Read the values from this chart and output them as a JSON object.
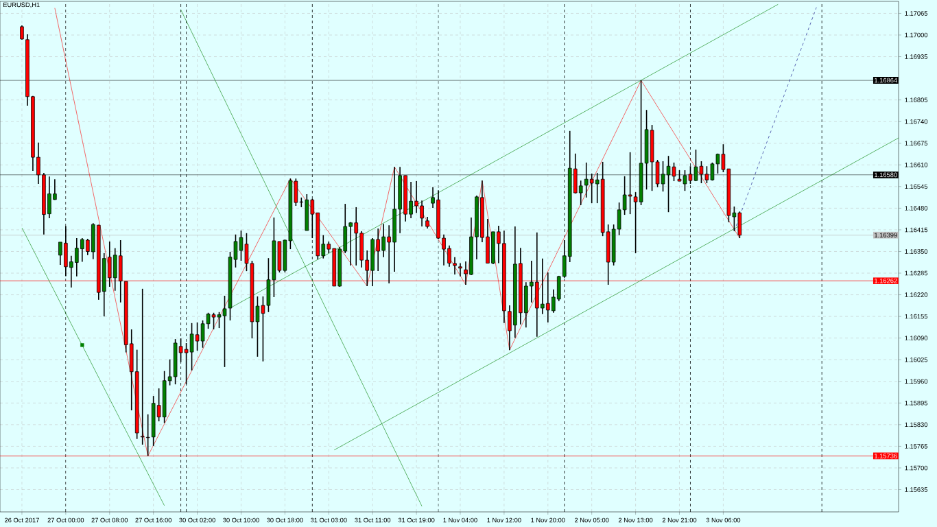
{
  "chart_data": {
    "type": "candlestick",
    "title": "EURUSD,H1",
    "categories": [
      "26 Oct 2017",
      null,
      null,
      null,
      null,
      null,
      null,
      null,
      "27 Oct 00:00",
      null,
      null,
      null,
      null,
      null,
      null,
      null,
      "27 Oct 08:00",
      null,
      null,
      null,
      null,
      null,
      null,
      null,
      "27 Oct 16:00",
      null,
      null,
      null,
      null,
      null,
      null,
      null,
      "30 Oct 02:00",
      null,
      null,
      null,
      null,
      null,
      null,
      null,
      "30 Oct 10:00",
      null,
      null,
      null,
      null,
      null,
      null,
      null,
      "30 Oct 18:00",
      null,
      null,
      null,
      null,
      null,
      null,
      null,
      "31 Oct 03:00",
      null,
      null,
      null,
      null,
      null,
      null,
      null,
      "31 Oct 11:00",
      null,
      null,
      null,
      null,
      null,
      null,
      null,
      "31 Oct 19:00",
      null,
      null,
      null,
      null,
      null,
      null,
      null,
      "1 Nov 04:00",
      null,
      null,
      null,
      null,
      null,
      null,
      null,
      "1 Nov 12:00",
      null,
      null,
      null,
      null,
      null,
      null,
      null,
      "1 Nov 20:00",
      null,
      null,
      null,
      null,
      null,
      null,
      null,
      "2 Nov 05:00",
      null,
      null,
      null,
      null,
      null,
      null,
      null,
      "2 Nov 13:00",
      null,
      null,
      null,
      null,
      null,
      null,
      null,
      "2 Nov 21:00",
      null,
      null,
      null,
      null,
      null,
      null,
      null,
      "3 Nov 06:00",
      null,
      null,
      null,
      null,
      null,
      null,
      null,
      null,
      null,
      null,
      null,
      null,
      null,
      null,
      null,
      null,
      null,
      null,
      null,
      null,
      null,
      null,
      null,
      null,
      null,
      null,
      null,
      null,
      null,
      null,
      null,
      null
    ],
    "ohlc": [
      [
        1.17025,
        1.17029,
        1.16986,
        1.16988
      ],
      [
        1.16986,
        1.17002,
        1.16788,
        1.16815
      ],
      [
        1.16815,
        1.16817,
        1.16592,
        1.16633
      ],
      [
        1.16633,
        1.16677,
        1.16553,
        1.1658
      ],
      [
        1.1658,
        1.16586,
        1.16401,
        1.16461
      ],
      [
        1.16463,
        1.16575,
        1.1645,
        1.16523
      ],
      [
        1.16506,
        1.16567,
        1.16505,
        1.16523
      ],
      [
        1.16339,
        1.16378,
        1.1631,
        1.16378
      ],
      [
        1.16375,
        1.16426,
        1.16276,
        1.16304
      ],
      [
        1.16302,
        1.16337,
        1.16242,
        1.16319
      ],
      [
        1.16317,
        1.1639,
        1.16275,
        1.1636
      ],
      [
        1.16358,
        1.1639,
        1.16319,
        1.16386
      ],
      [
        1.16384,
        1.16388,
        1.16339,
        1.1635
      ],
      [
        1.16349,
        1.16435,
        1.16327,
        1.16431
      ],
      [
        1.16429,
        1.1643,
        1.16205,
        1.16227
      ],
      [
        1.1623,
        1.16345,
        1.16155,
        1.16329
      ],
      [
        1.16333,
        1.1638,
        1.16244,
        1.16271
      ],
      [
        1.16271,
        1.1636,
        1.16232,
        1.16339
      ],
      [
        1.16337,
        1.16384,
        1.16197,
        1.16261
      ],
      [
        1.1626,
        1.1626,
        1.16047,
        1.1607
      ],
      [
        1.16073,
        1.16116,
        1.15873,
        1.15989
      ],
      [
        1.15989,
        1.16055,
        1.15787,
        1.15805
      ],
      [
        1.15795,
        1.16238,
        1.1577,
        1.15793
      ],
      [
        1.15792,
        1.15861,
        1.15736,
        1.15791
      ],
      [
        1.15793,
        1.15916,
        1.15766,
        1.15894
      ],
      [
        1.15888,
        1.15939,
        1.1584,
        1.15853
      ],
      [
        1.15853,
        1.15991,
        1.15835,
        1.15962
      ],
      [
        1.15962,
        1.16026,
        1.15948,
        1.15974
      ],
      [
        1.15974,
        1.16087,
        1.15951,
        1.16075
      ],
      [
        1.16065,
        1.16089,
        1.16018,
        1.16046
      ],
      [
        1.16056,
        1.16075,
        1.15951,
        1.16046
      ],
      [
        1.16048,
        1.16135,
        1.15993,
        1.16102
      ],
      [
        1.161,
        1.16137,
        1.16052,
        1.16081
      ],
      [
        1.16081,
        1.16143,
        1.16061,
        1.16133
      ],
      [
        1.16133,
        1.16166,
        1.16118,
        1.16162
      ],
      [
        1.1616,
        1.16166,
        1.16116,
        1.16153
      ],
      [
        1.16153,
        1.16168,
        1.1612,
        1.1616
      ],
      [
        1.16157,
        1.16217,
        1.16003,
        1.16178
      ],
      [
        1.1618,
        1.16349,
        1.16143,
        1.16333
      ],
      [
        1.16326,
        1.16401,
        1.16302,
        1.1638
      ],
      [
        1.16353,
        1.16413,
        1.16322,
        1.16392
      ],
      [
        1.16372,
        1.16405,
        1.16291,
        1.16314
      ],
      [
        1.16314,
        1.16322,
        1.16089,
        1.16139
      ],
      [
        1.16139,
        1.16215,
        1.16034,
        1.16186
      ],
      [
        1.16188,
        1.16215,
        1.1602,
        1.16164
      ],
      [
        1.16188,
        1.1633,
        1.16168,
        1.16265
      ],
      [
        1.16265,
        1.16452,
        1.16213,
        1.16382
      ],
      [
        1.1638,
        1.1638,
        1.16287,
        1.16293
      ],
      [
        1.16293,
        1.16386,
        1.16287,
        1.16384
      ],
      [
        1.16382,
        1.16569,
        1.16357,
        1.16563
      ],
      [
        1.16561,
        1.16569,
        1.16487,
        1.16497
      ],
      [
        1.16499,
        1.16512,
        1.16483,
        1.16498
      ],
      [
        1.16413,
        1.16522,
        1.16413,
        1.16505
      ],
      [
        1.16505,
        1.16508,
        1.1639,
        1.16462
      ],
      [
        1.16466,
        1.16466,
        1.16326,
        1.16337
      ],
      [
        1.16337,
        1.16399,
        1.16329,
        1.16372
      ],
      [
        1.16372,
        1.1638,
        1.16345,
        1.16357
      ],
      [
        1.16359,
        1.16359,
        1.16246,
        1.16246
      ],
      [
        1.16246,
        1.16363,
        1.16244,
        1.16357
      ],
      [
        1.16351,
        1.16493,
        1.16345,
        1.16425
      ],
      [
        1.16425,
        1.16438,
        1.16308,
        1.16436
      ],
      [
        1.16436,
        1.16483,
        1.16308,
        1.16405
      ],
      [
        1.16405,
        1.16411,
        1.16302,
        1.16324
      ],
      [
        1.16324,
        1.16353,
        1.16246,
        1.16293
      ],
      [
        1.16293,
        1.1639,
        1.16246,
        1.16386
      ],
      [
        1.16386,
        1.16419,
        1.16291,
        1.16351
      ],
      [
        1.16353,
        1.16433,
        1.16333,
        1.16394
      ],
      [
        1.16394,
        1.16429,
        1.16254,
        1.16378
      ],
      [
        1.16378,
        1.16604,
        1.16289,
        1.16477
      ],
      [
        1.16477,
        1.16604,
        1.16405,
        1.16578
      ],
      [
        1.16578,
        1.16578,
        1.1644,
        1.16462
      ],
      [
        1.16462,
        1.16559,
        1.1645,
        1.16501
      ],
      [
        1.16501,
        1.16561,
        1.16466,
        1.16487
      ],
      [
        1.16487,
        1.16503,
        1.16425,
        1.1645
      ],
      [
        1.16442,
        1.16454,
        1.16419,
        1.16425
      ],
      [
        1.16495,
        1.16543,
        1.16481,
        1.16512
      ],
      [
        1.16505,
        1.16534,
        1.16388,
        1.1639
      ],
      [
        1.1639,
        1.16401,
        1.16308,
        1.16357
      ],
      [
        1.16359,
        1.16368,
        1.16304,
        1.16315
      ],
      [
        1.16314,
        1.16333,
        1.16281,
        1.16308
      ],
      [
        1.16304,
        1.16315,
        1.16275,
        1.163
      ],
      [
        1.16295,
        1.1632,
        1.1625,
        1.16283
      ],
      [
        1.16281,
        1.16452,
        1.16279,
        1.16394
      ],
      [
        1.16394,
        1.16518,
        1.16326,
        1.16514
      ],
      [
        1.16512,
        1.16563,
        1.16378,
        1.16392
      ],
      [
        1.16394,
        1.16448,
        1.16315,
        1.16315
      ],
      [
        1.16315,
        1.16409,
        1.16312,
        1.16409
      ],
      [
        1.16409,
        1.16427,
        1.16315,
        1.16374
      ],
      [
        1.16374,
        1.16413,
        1.16135,
        1.16172
      ],
      [
        1.1617,
        1.16188,
        1.16054,
        1.16112
      ],
      [
        1.16129,
        1.16425,
        1.16091,
        1.16312
      ],
      [
        1.16314,
        1.16361,
        1.16131,
        1.16166
      ],
      [
        1.16166,
        1.16258,
        1.16122,
        1.16246
      ],
      [
        1.16246,
        1.16322,
        1.16197,
        1.16258
      ],
      [
        1.16258,
        1.16407,
        1.16094,
        1.1618
      ],
      [
        1.1618,
        1.16329,
        1.16162,
        1.16192
      ],
      [
        1.16194,
        1.16287,
        1.16137,
        1.16174
      ],
      [
        1.16172,
        1.16236,
        1.16166,
        1.16213
      ],
      [
        1.16207,
        1.16277,
        1.16201,
        1.16275
      ],
      [
        1.16275,
        1.16384,
        1.16271,
        1.16337
      ],
      [
        1.16335,
        1.16712,
        1.16318,
        1.166
      ],
      [
        1.16598,
        1.16644,
        1.16524,
        1.16526
      ],
      [
        1.16526,
        1.16563,
        1.16489,
        1.16547
      ],
      [
        1.16549,
        1.16617,
        1.16512,
        1.16567
      ],
      [
        1.16567,
        1.16584,
        1.16495,
        1.16555
      ],
      [
        1.16553,
        1.16586,
        1.16495,
        1.16565
      ],
      [
        1.16567,
        1.16619,
        1.16396,
        1.16407
      ],
      [
        1.16409,
        1.16431,
        1.1625,
        1.16318
      ],
      [
        1.16318,
        1.16431,
        1.16308,
        1.16417
      ],
      [
        1.16417,
        1.16497,
        1.16399,
        1.16475
      ],
      [
        1.16475,
        1.16576,
        1.1646,
        1.1652
      ],
      [
        1.1652,
        1.16648,
        1.16462,
        1.16516
      ],
      [
        1.16514,
        1.16528,
        1.16345,
        1.16499
      ],
      [
        1.16499,
        1.16864,
        1.16489,
        1.16615
      ],
      [
        1.16615,
        1.16775,
        1.16536,
        1.16716
      ],
      [
        1.16714,
        1.1673,
        1.16532,
        1.16619
      ],
      [
        1.16619,
        1.16625,
        1.16543,
        1.16553
      ],
      [
        1.16553,
        1.16621,
        1.1653,
        1.16582
      ],
      [
        1.1658,
        1.16637,
        1.16468,
        1.16606
      ],
      [
        1.16604,
        1.16617,
        1.16561,
        1.16576
      ],
      [
        1.16567,
        1.16594,
        1.16561,
        1.16561
      ],
      [
        1.16553,
        1.16594,
        1.16532,
        1.16578
      ],
      [
        1.16582,
        1.16606,
        1.16553,
        1.16563
      ],
      [
        1.16563,
        1.16656,
        1.16561,
        1.16604
      ],
      [
        1.16606,
        1.16621,
        1.16555,
        1.16582
      ],
      [
        1.16582,
        1.16606,
        1.16555,
        1.16565
      ],
      [
        1.16565,
        1.16617,
        1.16563,
        1.16613
      ],
      [
        1.16613,
        1.16644,
        1.16584,
        1.16642
      ],
      [
        1.16642,
        1.16672,
        1.16588,
        1.16596
      ],
      [
        1.16598,
        1.16598,
        1.16438,
        1.16458
      ],
      [
        1.16454,
        1.16485,
        1.16411,
        1.16466
      ],
      [
        1.16466,
        1.1647,
        1.1639,
        1.16399
      ],
      null,
      null,
      null,
      null,
      null,
      null,
      null,
      null,
      null,
      null,
      null,
      null,
      null,
      null,
      null,
      null,
      null,
      null,
      null,
      null,
      null,
      null,
      null,
      null,
      null,
      null,
      null,
      null,
      null
    ],
    "series": [
      {
        "type": "line",
        "color": "#ff0000",
        "values": [
          null,
          null,
          null,
          null,
          null,
          null,
          1.17081,
          null,
          null,
          null,
          null,
          null,
          null,
          null,
          null,
          null,
          null,
          null,
          null,
          null,
          null,
          null,
          null,
          1.15736,
          null,
          null,
          null,
          null,
          null,
          null,
          null,
          null,
          null,
          null,
          null,
          null,
          null,
          null,
          null,
          null,
          null,
          null,
          null,
          null,
          null,
          null,
          null,
          null,
          null,
          1.16569,
          null,
          null,
          null,
          null,
          null,
          null,
          null,
          null,
          null,
          null,
          null,
          null,
          null,
          1.16246,
          null,
          null,
          null,
          null,
          1.16604,
          null,
          null,
          null,
          null,
          null,
          null,
          null,
          null,
          null,
          null,
          null,
          null,
          1.1625,
          null,
          null,
          1.16563,
          null,
          null,
          null,
          null,
          1.16054,
          null,
          null,
          null,
          null,
          null,
          null,
          null,
          null,
          null,
          null,
          null,
          null,
          null,
          null,
          null,
          null,
          null,
          null,
          null,
          null,
          null,
          null,
          null,
          1.16864,
          null,
          null,
          null,
          null,
          null,
          null,
          null,
          null,
          null,
          null,
          null,
          null,
          null,
          null,
          null,
          null,
          null,
          1.1639,
          null,
          null,
          null,
          null,
          null,
          null,
          null,
          null,
          null,
          null,
          null,
          null,
          null,
          null,
          null,
          null,
          null,
          null,
          null,
          null,
          null,
          null,
          null,
          null,
          null,
          null,
          null,
          null,
          null
        ]
      },
      {
        "type": "line",
        "color": "#008000",
        "values": [
          null,
          null,
          null,
          null,
          null,
          null,
          null,
          null,
          null,
          null,
          null,
          null,
          null,
          null,
          null,
          null,
          null,
          null,
          null,
          null,
          null,
          null,
          null,
          null,
          null,
          null,
          null,
          null,
          null,
          null,
          null,
          null,
          null,
          null,
          null,
          null,
          null,
          null,
          1.1618,
          null,
          null,
          null,
          null,
          null,
          null,
          null,
          null,
          null,
          null,
          null,
          null,
          null,
          null,
          null,
          null,
          null,
          null,
          null,
          null,
          null,
          null,
          null,
          null,
          null,
          null,
          null,
          null,
          null,
          null,
          null,
          null,
          null,
          null,
          null,
          null,
          null,
          null,
          null,
          null,
          null,
          null,
          null,
          null,
          null,
          null,
          null,
          null,
          null,
          null,
          null,
          null,
          null,
          null,
          null,
          null,
          null,
          null,
          null,
          null,
          null,
          null,
          null,
          null,
          null,
          null,
          null,
          null,
          null,
          null,
          null,
          null,
          null,
          null,
          null,
          null,
          null,
          null,
          null,
          null,
          null,
          null,
          null,
          null,
          null,
          null,
          null,
          null,
          null,
          null,
          null,
          null,
          null,
          null,
          null,
          null,
          null,
          null,
          null,
          1.17092,
          null,
          null,
          null,
          null,
          null,
          null,
          null,
          null,
          null,
          null,
          null,
          null,
          null,
          null,
          null,
          null,
          null,
          null,
          null,
          null,
          null,
          null
        ]
      },
      {
        "type": "line",
        "color": "#008000",
        "values": [
          null,
          null,
          null,
          null,
          null,
          null,
          null,
          null,
          null,
          null,
          null,
          null,
          null,
          null,
          null,
          null,
          null,
          null,
          null,
          null,
          null,
          null,
          null,
          null,
          null,
          null,
          null,
          null,
          null,
          null,
          null,
          null,
          null,
          null,
          null,
          null,
          null,
          null,
          null,
          null,
          null,
          null,
          null,
          null,
          null,
          null,
          null,
          null,
          null,
          null,
          null,
          null,
          null,
          null,
          null,
          null,
          null,
          1.15754,
          null,
          null,
          null,
          null,
          null,
          null,
          null,
          null,
          null,
          null,
          null,
          null,
          null,
          null,
          null,
          null,
          null,
          null,
          null,
          null,
          null,
          null,
          null,
          null,
          null,
          null,
          null,
          null,
          null,
          null,
          null,
          null,
          null,
          null,
          null,
          null,
          null,
          null,
          null,
          null,
          null,
          null,
          null,
          null,
          null,
          null,
          null,
          null,
          null,
          null,
          null,
          null,
          null,
          null,
          null,
          null,
          null,
          null,
          null,
          null,
          null,
          null,
          null,
          null,
          null,
          null,
          null,
          null,
          null,
          null,
          null,
          null,
          null,
          null,
          null,
          null,
          null,
          null,
          null,
          null,
          null,
          null,
          null,
          null,
          null,
          null,
          null,
          null,
          null,
          null,
          null,
          null,
          null,
          null,
          null,
          null,
          null,
          null,
          null,
          null,
          null,
          null,
          1.16691
        ]
      },
      {
        "type": "line",
        "color": "#008000",
        "values": [
          1.16421,
          null,
          null,
          null,
          null,
          null,
          null,
          null,
          null,
          null,
          null,
          null,
          null,
          null,
          null,
          null,
          null,
          null,
          null,
          null,
          null,
          null,
          null,
          null,
          null,
          null,
          1.15587,
          null,
          null,
          null,
          null,
          null,
          null,
          null,
          null,
          null,
          null,
          null,
          null,
          null,
          null,
          null,
          null,
          null,
          null,
          null,
          null,
          null,
          null,
          null,
          null,
          null,
          null,
          null,
          null,
          null,
          null,
          null,
          null,
          null,
          null,
          null,
          null,
          null,
          null,
          null,
          null,
          null,
          null,
          null,
          null,
          null,
          null,
          null,
          null,
          null,
          null,
          null,
          null,
          null,
          null,
          null,
          null,
          null,
          null,
          null,
          null,
          null,
          null,
          null,
          null,
          null,
          null,
          null,
          null,
          null,
          null,
          null,
          null,
          null,
          null,
          null,
          null,
          null,
          null,
          null,
          null,
          null,
          null,
          null,
          null,
          null,
          null,
          null,
          null,
          null,
          null,
          null,
          null,
          null,
          null,
          null,
          null,
          null,
          null,
          null,
          null,
          null,
          null,
          null,
          null,
          null,
          null,
          null,
          null,
          null,
          null,
          null,
          null,
          null,
          null,
          null,
          null,
          null,
          null,
          null,
          null,
          null,
          null,
          null,
          null,
          null,
          null,
          null,
          null,
          null,
          null,
          null,
          null,
          null,
          null
        ]
      },
      {
        "type": "line",
        "color": "#008000",
        "values": [
          null,
          null,
          null,
          null,
          null,
          null,
          null,
          null,
          null,
          null,
          null,
          null,
          null,
          null,
          null,
          null,
          null,
          null,
          null,
          null,
          null,
          null,
          null,
          null,
          null,
          null,
          null,
          null,
          null,
          1.17076,
          null,
          null,
          null,
          null,
          null,
          null,
          null,
          null,
          null,
          null,
          null,
          null,
          null,
          null,
          null,
          null,
          null,
          null,
          null,
          null,
          null,
          null,
          null,
          null,
          null,
          null,
          null,
          null,
          null,
          null,
          null,
          null,
          null,
          null,
          null,
          null,
          null,
          null,
          null,
          null,
          null,
          null,
          null,
          1.15585,
          null,
          null,
          null,
          null,
          null,
          null,
          null,
          null,
          null,
          null,
          null,
          null,
          null,
          null,
          null,
          null,
          null,
          null,
          null,
          null,
          null,
          null,
          null,
          null,
          null,
          null,
          null,
          null,
          null,
          null,
          null,
          null,
          null,
          null,
          null,
          null,
          null,
          null,
          null,
          null,
          null,
          null,
          null,
          null,
          null,
          null,
          null,
          null,
          null,
          null,
          null,
          null,
          null,
          null,
          null,
          null,
          null,
          null,
          null,
          null,
          null,
          null,
          null,
          null,
          null,
          null,
          null,
          null,
          null,
          null,
          null,
          null,
          null,
          null,
          null,
          null,
          null,
          null,
          null,
          null,
          null,
          null,
          null,
          null,
          null,
          null,
          null
        ]
      },
      {
        "type": "line",
        "color": "#000080",
        "line_style": "dashed",
        "values": [
          null,
          null,
          null,
          null,
          null,
          null,
          null,
          null,
          null,
          null,
          null,
          null,
          null,
          null,
          null,
          null,
          null,
          null,
          null,
          null,
          null,
          null,
          null,
          null,
          null,
          null,
          null,
          null,
          null,
          null,
          null,
          null,
          null,
          null,
          null,
          null,
          null,
          null,
          null,
          null,
          null,
          null,
          null,
          null,
          null,
          null,
          null,
          null,
          null,
          null,
          null,
          null,
          null,
          null,
          null,
          null,
          null,
          null,
          null,
          null,
          null,
          null,
          null,
          null,
          null,
          null,
          null,
          null,
          null,
          null,
          null,
          null,
          null,
          null,
          null,
          null,
          null,
          null,
          null,
          null,
          null,
          null,
          null,
          null,
          null,
          null,
          null,
          null,
          null,
          null,
          null,
          null,
          null,
          null,
          null,
          null,
          null,
          null,
          null,
          null,
          null,
          null,
          null,
          null,
          null,
          null,
          null,
          null,
          null,
          null,
          null,
          null,
          null,
          null,
          null,
          null,
          null,
          null,
          null,
          null,
          null,
          null,
          null,
          null,
          null,
          null,
          null,
          null,
          null,
          null,
          1.16411,
          null,
          null,
          null,
          null,
          null,
          null,
          null,
          null,
          null,
          null,
          null,
          null,
          null,
          null,
          1.17083,
          null,
          null,
          null,
          null,
          null,
          null,
          null,
          null,
          null,
          null,
          null,
          null,
          null,
          null,
          null
        ]
      },
      {
        "type": "scatter",
        "color": "#008000",
        "marker": "square",
        "values": [
          null,
          null,
          null,
          null,
          null,
          null,
          null,
          null,
          null,
          null,
          null,
          1.16069,
          null,
          null,
          null,
          null,
          null,
          null,
          null,
          null,
          null,
          null,
          null,
          null,
          null,
          null,
          null,
          null,
          null,
          null,
          null,
          null,
          null,
          null,
          null,
          null,
          null,
          null,
          null,
          null,
          null,
          null,
          null,
          null,
          null,
          null,
          null,
          null,
          null,
          null,
          null,
          null,
          null,
          null,
          null,
          null,
          null,
          null,
          null,
          null,
          null,
          null,
          null,
          null,
          null,
          null,
          null,
          null,
          null,
          null,
          null,
          null,
          null,
          null,
          null,
          null,
          null,
          null,
          null,
          null,
          null,
          null,
          null,
          null,
          null,
          null,
          null,
          null,
          null,
          null,
          null,
          null,
          null,
          null,
          null,
          null,
          null,
          null,
          null,
          null,
          null,
          null,
          null,
          null,
          null,
          null,
          null,
          null,
          null,
          null,
          null,
          null,
          null,
          null,
          null,
          null,
          null,
          null,
          null,
          null,
          null,
          null,
          null,
          null,
          null,
          null,
          null,
          null,
          null,
          null,
          null,
          null,
          null,
          null,
          null,
          null,
          null,
          null,
          null,
          null,
          null,
          null,
          null,
          null,
          null,
          null,
          null,
          null,
          null,
          null,
          null,
          null,
          null,
          null,
          null,
          null,
          null,
          null,
          null,
          null,
          null
        ]
      }
    ],
    "ylim": [
      1.15568,
      1.17101
    ],
    "yticks": [
      {
        "value": 1.17065,
        "label": "1.17065"
      },
      {
        "value": 1.17,
        "label": "1.17000"
      },
      {
        "value": 1.16935,
        "label": "1.16935"
      },
      {
        "value": 1.16805,
        "label": "1.16805"
      },
      {
        "value": 1.1674,
        "label": "1.16740"
      },
      {
        "value": 1.16675,
        "label": "1.16675"
      },
      {
        "value": 1.1661,
        "label": "1.16610"
      },
      {
        "value": 1.16545,
        "label": "1.16545"
      },
      {
        "value": 1.1648,
        "label": "1.16480"
      },
      {
        "value": 1.16415,
        "label": "1.16415"
      },
      {
        "value": 1.1635,
        "label": "1.16350"
      },
      {
        "value": 1.16285,
        "label": "1.16285"
      },
      {
        "value": 1.1622,
        "label": "1.16220"
      },
      {
        "value": 1.16155,
        "label": "1.16155"
      },
      {
        "value": 1.1609,
        "label": "1.16090"
      },
      {
        "value": 1.16025,
        "label": "1.16025"
      },
      {
        "value": 1.1596,
        "label": "1.15960"
      },
      {
        "value": 1.15895,
        "label": "1.15895"
      },
      {
        "value": 1.1583,
        "label": "1.15830"
      },
      {
        "value": 1.15765,
        "label": "1.15765"
      },
      {
        "value": 1.157,
        "label": "1.15700"
      },
      {
        "value": 1.15635,
        "label": "1.15635"
      }
    ],
    "ref_lines": [
      {
        "axis": "y",
        "value": 1.16864,
        "label": "1.16864",
        "color": "#000000"
      },
      {
        "axis": "y",
        "value": 1.1658,
        "label": "1.16580",
        "color": "#000000"
      },
      {
        "axis": "y",
        "value": 1.16399,
        "label": "1.16399",
        "color": "#c0c0c0"
      },
      {
        "axis": "y",
        "value": 1.16262,
        "label": "1.16262",
        "color": "#ff0000"
      },
      {
        "axis": "y",
        "value": 1.15736,
        "label": "1.15736",
        "color": "#ff0000"
      }
    ],
    "grid": true
  }
}
